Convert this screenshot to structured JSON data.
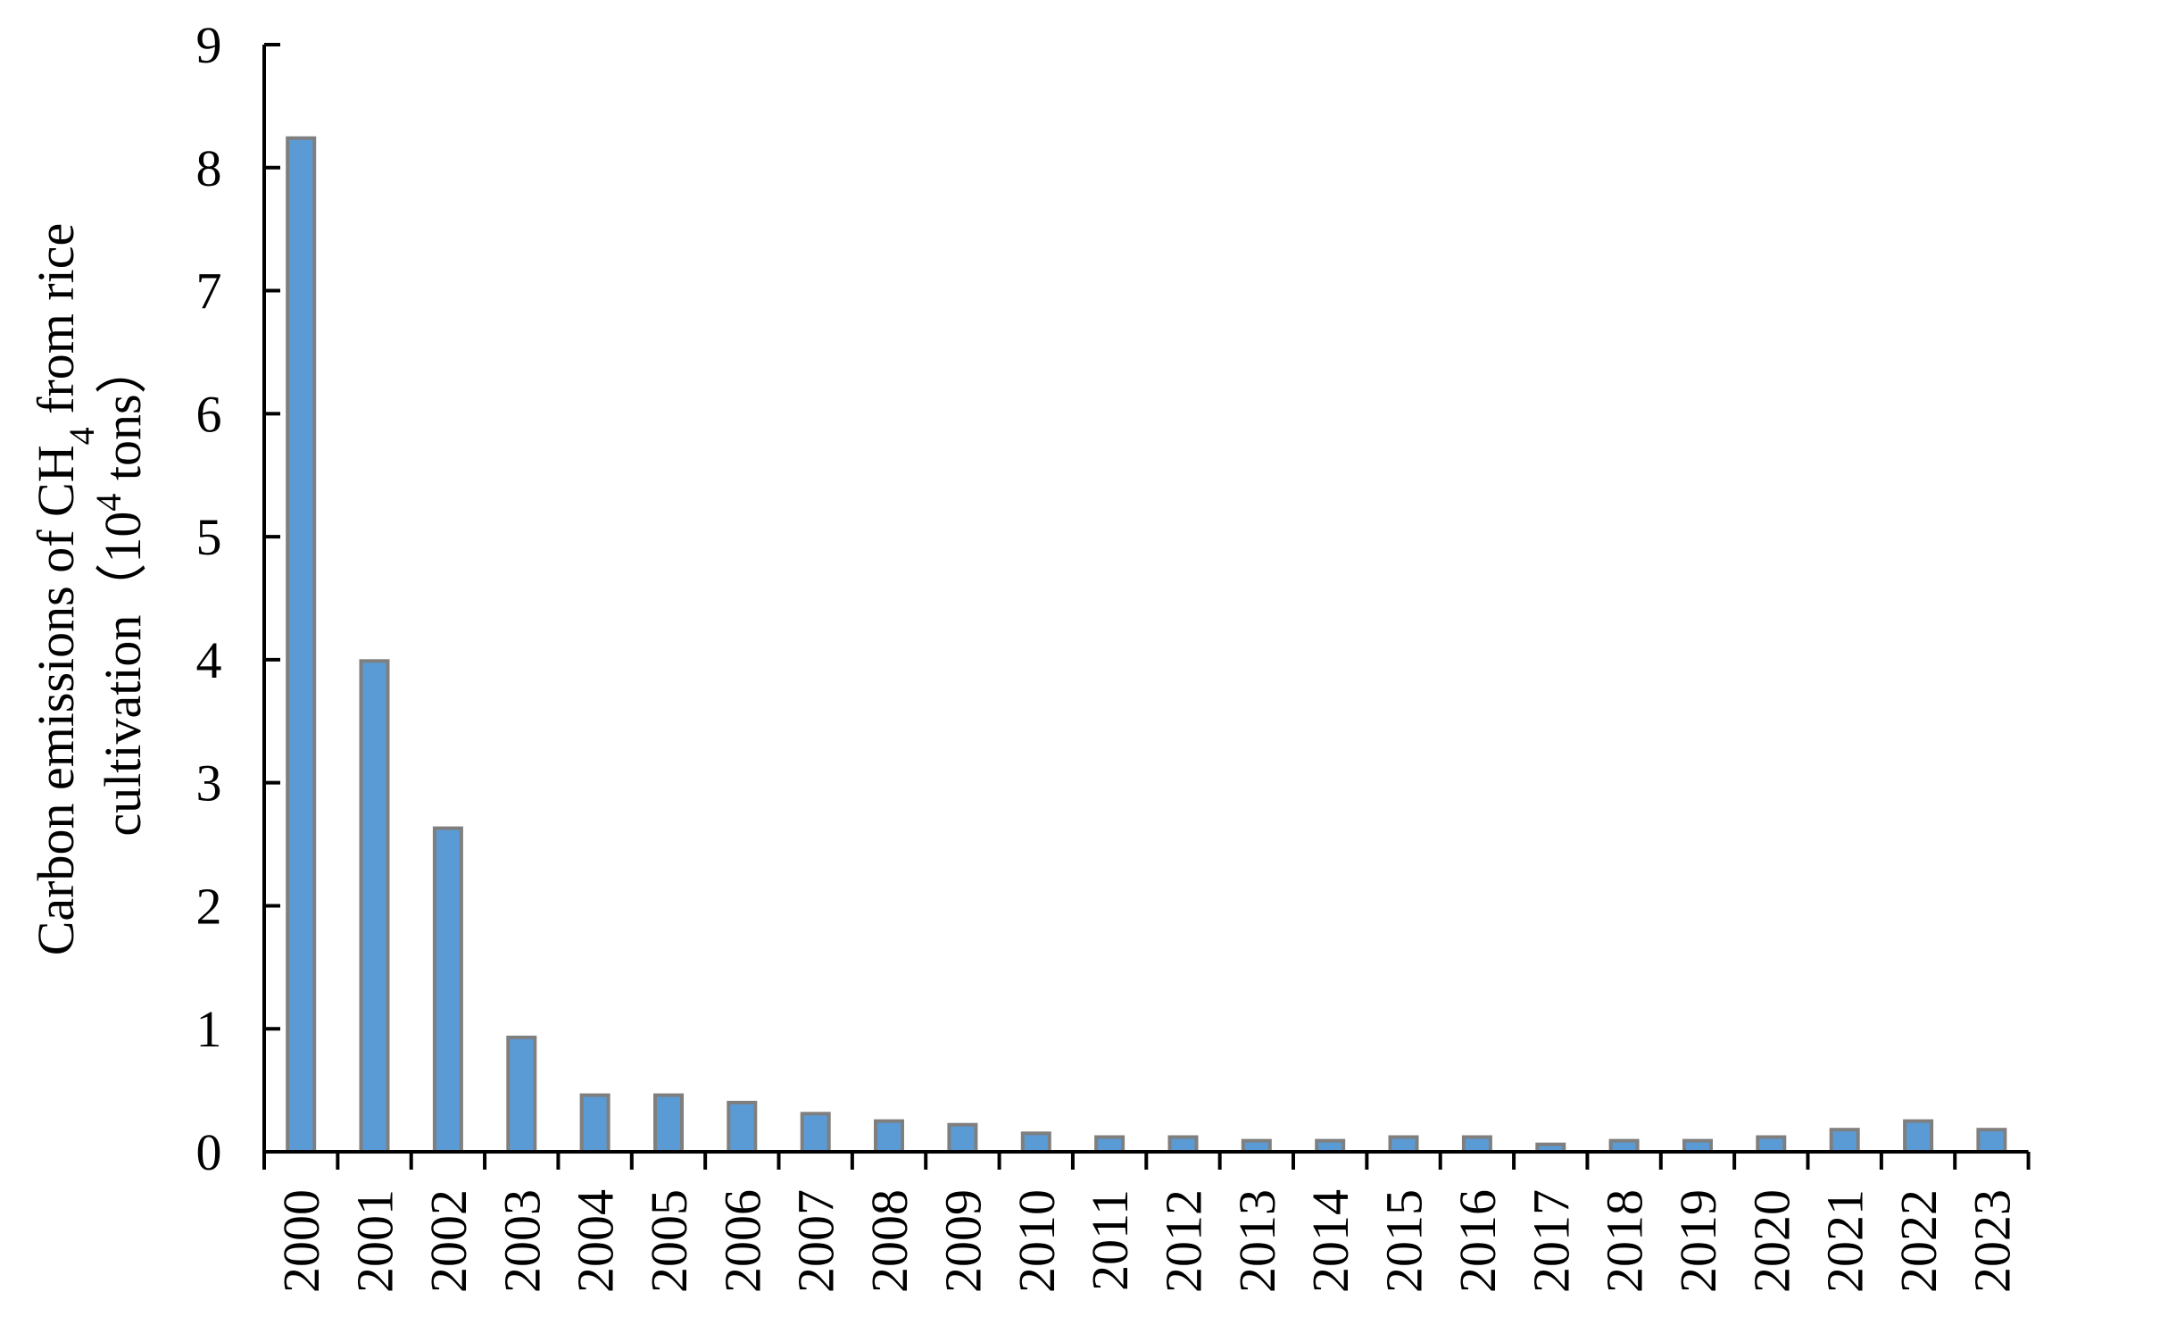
{
  "chart_data": {
    "type": "bar",
    "categories": [
      "2000",
      "2001",
      "2002",
      "2003",
      "2004",
      "2005",
      "2006",
      "2007",
      "2008",
      "2009",
      "2010",
      "2011",
      "2012",
      "2013",
      "2014",
      "2015",
      "2016",
      "2017",
      "2018",
      "2019",
      "2020",
      "2021",
      "2022",
      "2023"
    ],
    "values": [
      8.24,
      3.99,
      2.63,
      0.93,
      0.46,
      0.46,
      0.4,
      0.31,
      0.25,
      0.22,
      0.15,
      0.12,
      0.12,
      0.09,
      0.09,
      0.12,
      0.12,
      0.06,
      0.09,
      0.09,
      0.12,
      0.18,
      0.25,
      0.18
    ],
    "title": "",
    "xlabel": "",
    "ylabel": {
      "line1_prefix": "Carbon emissions  of CH",
      "line1_subscript": "4",
      "line1_suffix": " from rice",
      "line2_prefix": "cultivation（10",
      "line2_superscript": "4",
      "line2_suffix": "  tons）"
    },
    "ylim": [
      0,
      9
    ],
    "yticks": [
      "0",
      "1",
      "2",
      "3",
      "4",
      "5",
      "6",
      "7",
      "8",
      "9"
    ],
    "grid": false,
    "legend": "none",
    "colors": {
      "bar_fill": "#5b9bd5",
      "bar_stroke": "#7f7f7f",
      "axis": "#000000"
    }
  }
}
